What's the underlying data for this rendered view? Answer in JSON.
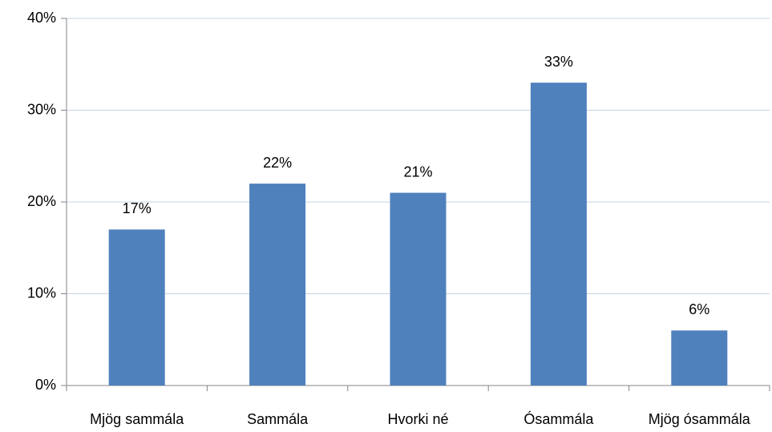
{
  "chart_data": {
    "type": "bar",
    "categories": [
      "Mjög sammála",
      "Sammála",
      "Hvorki né",
      "Ósammála",
      "Mjög ósammála"
    ],
    "values": [
      17,
      22,
      21,
      33,
      6
    ],
    "value_labels": [
      "17%",
      "22%",
      "21%",
      "33%",
      "6%"
    ],
    "color": "#4f81bd",
    "ylim": [
      0,
      40
    ],
    "yticks": [
      {
        "value": 0,
        "label": "0%"
      },
      {
        "value": 10,
        "label": "10%"
      },
      {
        "value": 20,
        "label": "20%"
      },
      {
        "value": 30,
        "label": "30%"
      },
      {
        "value": 40,
        "label": "40%"
      }
    ],
    "grid": true
  }
}
